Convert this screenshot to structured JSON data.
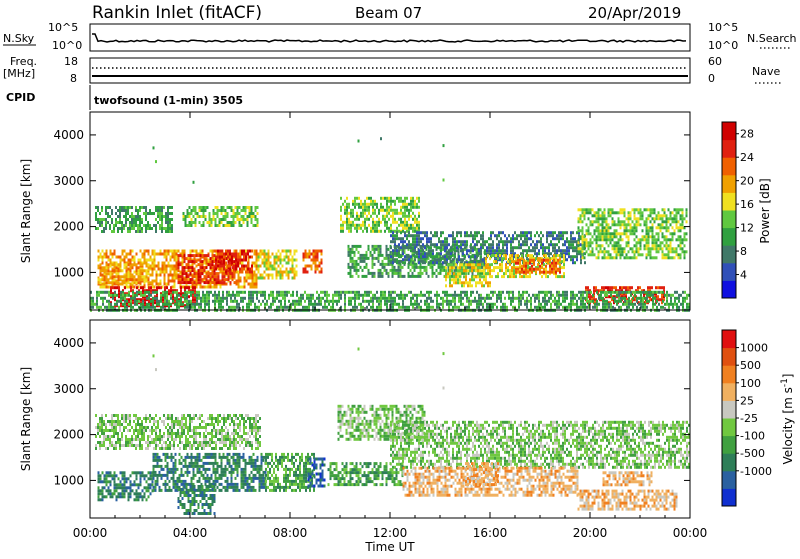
{
  "header": {
    "station": "Rankin Inlet (fitACF)",
    "beam": "Beam 07",
    "date": "20/Apr/2019"
  },
  "noise_panel": {
    "left_label": "N.Sky",
    "left_ticks": [
      "10^5",
      "10^0"
    ],
    "right_ticks": [
      "10^5",
      "10^0"
    ],
    "right_label": "N.Search"
  },
  "freq_panel": {
    "left_label_1": "Freq.",
    "left_label_2": "[MHz]",
    "left_ticks": [
      "18",
      "8"
    ],
    "right_ticks": [
      "60",
      "0"
    ],
    "right_label": "Nave"
  },
  "cpid": {
    "label": "CPID",
    "value": "twofsound (1-min) 3505"
  },
  "colors": {
    "power_scale": [
      "#1010e0",
      "#3050b8",
      "#407868",
      "#30a040",
      "#60c840",
      "#f0e020",
      "#f0a000",
      "#f06000",
      "#e02010",
      "#d00000"
    ],
    "velocity_scale": [
      "#1030d0",
      "#2a60a0",
      "#2e7e58",
      "#40a040",
      "#70c840",
      "#c8c8c0",
      "#f0b060",
      "#f08020",
      "#e05010",
      "#e01010"
    ]
  },
  "chart_data": [
    {
      "type": "heatmap",
      "title": "",
      "quantity": "Power",
      "xlabel": "",
      "ylabel": "Slant Range [km]",
      "x_ticks": [
        "00:00",
        "04:00",
        "08:00",
        "12:00",
        "16:00",
        "20:00",
        "00:00"
      ],
      "y_ticks": [
        "1000",
        "2000",
        "3000",
        "4000"
      ],
      "xlim_hours": [
        0,
        24
      ],
      "ylim_km": [
        180,
        4500
      ],
      "colorbar": {
        "label": "Power [dB]",
        "ticks": [
          "4",
          "8",
          "12",
          "16",
          "20",
          "24",
          "28"
        ],
        "range": [
          0,
          30
        ]
      },
      "regions": [
        {
          "t0": 0.2,
          "t1": 3.3,
          "r0": 1900,
          "r1": 2450,
          "v": 9
        },
        {
          "t0": 3.7,
          "t1": 6.7,
          "r0": 2000,
          "r1": 2450,
          "v": 12
        },
        {
          "t0": 0.3,
          "t1": 6.7,
          "r0": 700,
          "r1": 1500,
          "v": 18
        },
        {
          "t0": 3.5,
          "t1": 5.8,
          "r0": 800,
          "r1": 1400,
          "v": 24
        },
        {
          "t0": 5.0,
          "t1": 6.5,
          "r0": 1000,
          "r1": 1500,
          "v": 26
        },
        {
          "t0": 0.3,
          "t1": 2.4,
          "r0": 800,
          "r1": 1200,
          "v": 20
        },
        {
          "t0": 0.8,
          "t1": 4.2,
          "r0": 250,
          "r1": 700,
          "v": 27
        },
        {
          "t0": 6.7,
          "t1": 8.3,
          "r0": 900,
          "r1": 1500,
          "v": 16
        },
        {
          "t0": 8.5,
          "t1": 9.3,
          "r0": 1000,
          "r1": 1500,
          "v": 22
        },
        {
          "t0": 10.0,
          "t1": 13.2,
          "r0": 1900,
          "r1": 2650,
          "v": 13
        },
        {
          "t0": 10.3,
          "t1": 15.8,
          "r0": 900,
          "r1": 1600,
          "v": 11
        },
        {
          "t0": 12.0,
          "t1": 19.8,
          "r0": 1200,
          "r1": 1900,
          "v": 8
        },
        {
          "t0": 14.2,
          "t1": 16.0,
          "r0": 700,
          "r1": 1200,
          "v": 15
        },
        {
          "t0": 15.8,
          "t1": 19.0,
          "r0": 900,
          "r1": 1400,
          "v": 17
        },
        {
          "t0": 17.0,
          "t1": 18.8,
          "r0": 1000,
          "r1": 1300,
          "v": 21
        },
        {
          "t0": 19.5,
          "t1": 23.9,
          "r0": 1300,
          "r1": 2400,
          "v": 12
        },
        {
          "t0": 19.8,
          "t1": 23.0,
          "r0": 350,
          "r1": 700,
          "v": 24
        },
        {
          "t0": 0.0,
          "t1": 24.0,
          "r0": 180,
          "r1": 600,
          "v": 9
        }
      ],
      "points": [
        {
          "t": 2.5,
          "r": 3750,
          "v": 10
        },
        {
          "t": 2.6,
          "r": 3450,
          "v": 12
        },
        {
          "t": 10.7,
          "r": 3900,
          "v": 10
        },
        {
          "t": 11.6,
          "r": 3950,
          "v": 8
        },
        {
          "t": 14.1,
          "r": 3800,
          "v": 9
        },
        {
          "t": 14.1,
          "r": 3050,
          "v": 12
        },
        {
          "t": 4.1,
          "r": 3000,
          "v": 10
        }
      ]
    },
    {
      "type": "heatmap",
      "title": "",
      "quantity": "Velocity",
      "xlabel": "Time UT",
      "ylabel": "Slant Range [km]",
      "x_ticks": [
        "00:00",
        "04:00",
        "08:00",
        "12:00",
        "16:00",
        "20:00",
        "00:00"
      ],
      "y_ticks": [
        "1000",
        "2000",
        "3000",
        "4000"
      ],
      "xlim_hours": [
        0,
        24
      ],
      "ylim_km": [
        180,
        4500
      ],
      "colorbar": {
        "label": "Velocity [m s^-1]",
        "ticks": [
          "1000",
          "500",
          "100",
          "25",
          "-25",
          "-100",
          "-500",
          "-1000"
        ],
        "range": [
          -1000,
          1000
        ]
      },
      "regions": [
        {
          "t0": 0.2,
          "t1": 6.8,
          "r0": 1700,
          "r1": 2450,
          "v": 0
        },
        {
          "t0": 9.9,
          "t1": 13.4,
          "r0": 1900,
          "r1": 2650,
          "v": 0
        },
        {
          "t0": 12.0,
          "t1": 24.0,
          "r0": 1300,
          "r1": 2300,
          "v": 0
        },
        {
          "t0": 0.3,
          "t1": 2.5,
          "r0": 600,
          "r1": 1200,
          "v": 300
        },
        {
          "t0": 2.5,
          "t1": 7.0,
          "r0": 800,
          "r1": 1600,
          "v": 200
        },
        {
          "t0": 3.5,
          "t1": 5.0,
          "r0": 300,
          "r1": 900,
          "v": 150
        },
        {
          "t0": 7.0,
          "t1": 9.0,
          "r0": 800,
          "r1": 1600,
          "v": 60
        },
        {
          "t0": 8.7,
          "t1": 9.4,
          "r0": 900,
          "r1": 1500,
          "v": 800
        },
        {
          "t0": 9.5,
          "t1": 12.5,
          "r0": 900,
          "r1": 1400,
          "v": 80
        },
        {
          "t0": 12.5,
          "t1": 19.5,
          "r0": 700,
          "r1": 1300,
          "v": -300
        },
        {
          "t0": 15.0,
          "t1": 16.3,
          "r0": 900,
          "r1": 1400,
          "v": -400
        },
        {
          "t0": 19.5,
          "t1": 23.5,
          "r0": 400,
          "r1": 800,
          "v": -450
        },
        {
          "t0": 20.5,
          "t1": 22.5,
          "r0": 900,
          "r1": 1200,
          "v": -200
        }
      ],
      "points": [
        {
          "t": 2.5,
          "r": 3750,
          "v": 20
        },
        {
          "t": 2.6,
          "r": 3450,
          "v": -40
        },
        {
          "t": 10.7,
          "r": 3900,
          "v": 0
        },
        {
          "t": 14.1,
          "r": 3800,
          "v": -20
        },
        {
          "t": 14.1,
          "r": 3050,
          "v": -60
        }
      ]
    }
  ]
}
